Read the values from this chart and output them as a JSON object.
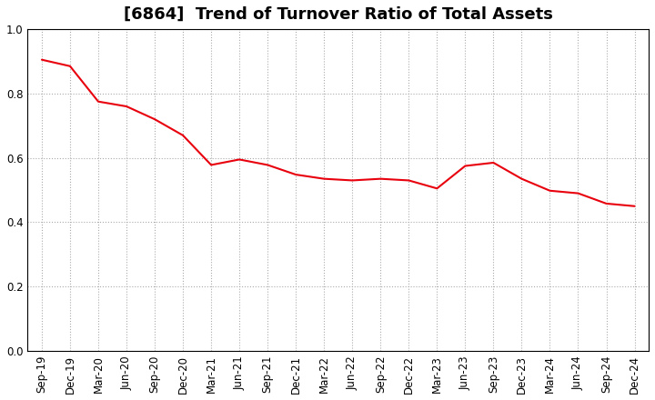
{
  "title": "[6864]  Trend of Turnover Ratio of Total Assets",
  "x_labels": [
    "Sep-19",
    "Dec-19",
    "Mar-20",
    "Jun-20",
    "Sep-20",
    "Dec-20",
    "Mar-21",
    "Jun-21",
    "Sep-21",
    "Dec-21",
    "Mar-22",
    "Jun-22",
    "Sep-22",
    "Dec-22",
    "Mar-23",
    "Jun-23",
    "Sep-23",
    "Dec-23",
    "Mar-24",
    "Jun-24",
    "Sep-24",
    "Dec-24"
  ],
  "y_values": [
    0.905,
    0.885,
    0.775,
    0.76,
    0.72,
    0.67,
    0.578,
    0.595,
    0.578,
    0.548,
    0.535,
    0.53,
    0.535,
    0.53,
    0.505,
    0.575,
    0.585,
    0.535,
    0.498,
    0.49,
    0.458,
    0.45
  ],
  "line_color": "#e8000d",
  "ylim": [
    0.0,
    1.0
  ],
  "yticks": [
    0.0,
    0.2,
    0.4,
    0.6,
    0.8,
    1.0
  ],
  "background_color": "#ffffff",
  "grid_color": "#aaaaaa",
  "title_fontsize": 13,
  "tick_fontsize": 8.5
}
